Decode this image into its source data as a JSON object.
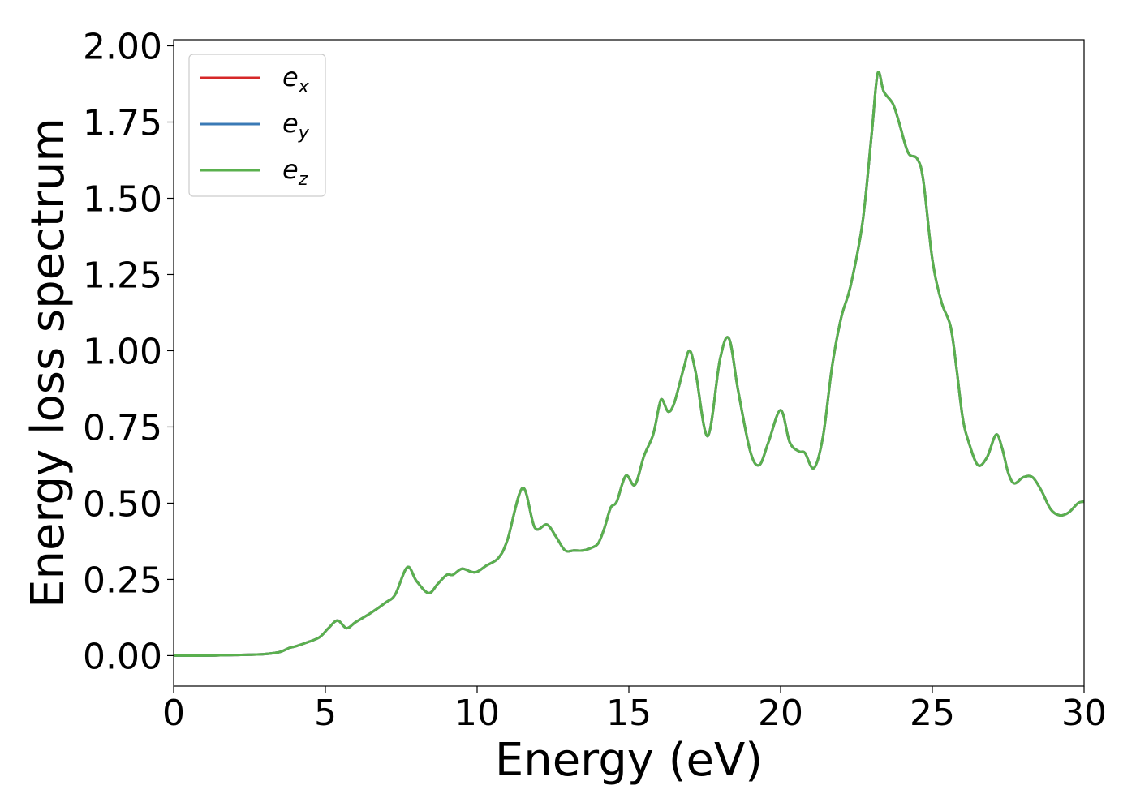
{
  "chart_data": {
    "type": "line",
    "xlabel": "Energy (eV)",
    "ylabel": "Energy loss spectrum",
    "xlim": [
      0,
      30
    ],
    "ylim": [
      -0.1,
      2.02
    ],
    "xticks": [
      0,
      5,
      10,
      15,
      20,
      25,
      30
    ],
    "xtick_labels": [
      "0",
      "5",
      "10",
      "15",
      "20",
      "25",
      "30"
    ],
    "yticks": [
      0,
      0.25,
      0.5,
      0.75,
      1.0,
      1.25,
      1.5,
      1.75,
      2.0
    ],
    "ytick_labels": [
      "0.00",
      "0.25",
      "0.50",
      "0.75",
      "1.00",
      "1.25",
      "1.50",
      "1.75",
      "2.00"
    ],
    "grid": false,
    "legend_position": "top-left",
    "x": [
      0,
      1,
      2,
      2.5,
      3,
      3.5,
      3.8,
      4,
      4.3,
      4.8,
      5.1,
      5.4,
      5.7,
      6.0,
      6.5,
      7.0,
      7.3,
      7.7,
      8.0,
      8.4,
      8.7,
      9.0,
      9.2,
      9.5,
      9.8,
      10.0,
      10.3,
      10.7,
      11.0,
      11.5,
      11.9,
      12.3,
      12.6,
      12.9,
      13.2,
      13.5,
      13.8,
      14.0,
      14.2,
      14.4,
      14.6,
      14.9,
      15.2,
      15.5,
      15.8,
      16.0,
      16.1,
      16.3,
      16.5,
      16.8,
      17.0,
      17.2,
      17.6,
      18.0,
      18.3,
      18.6,
      19.0,
      19.3,
      19.6,
      20.0,
      20.3,
      20.6,
      20.8,
      21.1,
      21.4,
      21.7,
      22.0,
      22.3,
      22.7,
      23.0,
      23.2,
      23.4,
      23.7,
      23.9,
      24.2,
      24.5,
      24.7,
      25.0,
      25.3,
      25.6,
      25.8,
      26.0,
      26.2,
      26.5,
      26.8,
      27.1,
      27.3,
      27.5,
      27.7,
      28.0,
      28.3,
      28.6,
      28.9,
      29.2,
      29.5,
      29.8,
      30.0
    ],
    "series": [
      {
        "name": "e_x",
        "label_base": "e",
        "label_sub": "x",
        "color": "#d62728",
        "values": [
          0.0,
          0.0,
          0.002,
          0.003,
          0.005,
          0.012,
          0.025,
          0.03,
          0.04,
          0.06,
          0.09,
          0.115,
          0.09,
          0.11,
          0.14,
          0.175,
          0.2,
          0.29,
          0.245,
          0.205,
          0.235,
          0.265,
          0.265,
          0.285,
          0.275,
          0.275,
          0.295,
          0.32,
          0.38,
          0.55,
          0.42,
          0.43,
          0.39,
          0.345,
          0.345,
          0.345,
          0.355,
          0.37,
          0.42,
          0.485,
          0.505,
          0.59,
          0.56,
          0.655,
          0.725,
          0.82,
          0.84,
          0.8,
          0.83,
          0.94,
          1.0,
          0.93,
          0.72,
          0.97,
          1.04,
          0.87,
          0.67,
          0.625,
          0.7,
          0.805,
          0.7,
          0.67,
          0.665,
          0.615,
          0.72,
          0.95,
          1.11,
          1.21,
          1.42,
          1.71,
          1.91,
          1.85,
          1.81,
          1.75,
          1.65,
          1.63,
          1.56,
          1.3,
          1.16,
          1.08,
          0.94,
          0.78,
          0.7,
          0.625,
          0.65,
          0.725,
          0.68,
          0.6,
          0.565,
          0.585,
          0.585,
          0.54,
          0.48,
          0.46,
          0.47,
          0.5,
          0.505
        ]
      },
      {
        "name": "e_y",
        "label_base": "e",
        "label_sub": "y",
        "color": "#3a7ab6",
        "values": [
          0.0,
          0.0,
          0.002,
          0.003,
          0.005,
          0.012,
          0.025,
          0.03,
          0.04,
          0.06,
          0.09,
          0.115,
          0.09,
          0.11,
          0.14,
          0.175,
          0.2,
          0.29,
          0.245,
          0.205,
          0.235,
          0.265,
          0.265,
          0.285,
          0.275,
          0.275,
          0.295,
          0.32,
          0.38,
          0.55,
          0.42,
          0.43,
          0.39,
          0.345,
          0.345,
          0.345,
          0.355,
          0.37,
          0.42,
          0.485,
          0.505,
          0.59,
          0.56,
          0.655,
          0.725,
          0.82,
          0.84,
          0.8,
          0.83,
          0.94,
          1.0,
          0.93,
          0.72,
          0.97,
          1.04,
          0.87,
          0.67,
          0.625,
          0.7,
          0.805,
          0.7,
          0.67,
          0.665,
          0.615,
          0.72,
          0.95,
          1.11,
          1.21,
          1.42,
          1.71,
          1.91,
          1.85,
          1.81,
          1.75,
          1.65,
          1.63,
          1.56,
          1.3,
          1.16,
          1.08,
          0.94,
          0.78,
          0.7,
          0.625,
          0.65,
          0.725,
          0.68,
          0.6,
          0.565,
          0.585,
          0.585,
          0.54,
          0.48,
          0.46,
          0.47,
          0.5,
          0.505
        ]
      },
      {
        "name": "e_z",
        "label_base": "e",
        "label_sub": "z",
        "color": "#5ab04e",
        "values": [
          0.0,
          0.0,
          0.002,
          0.003,
          0.005,
          0.012,
          0.025,
          0.03,
          0.04,
          0.06,
          0.09,
          0.115,
          0.09,
          0.11,
          0.14,
          0.175,
          0.2,
          0.29,
          0.245,
          0.205,
          0.235,
          0.265,
          0.265,
          0.285,
          0.275,
          0.275,
          0.295,
          0.32,
          0.38,
          0.55,
          0.42,
          0.43,
          0.39,
          0.345,
          0.345,
          0.345,
          0.355,
          0.37,
          0.42,
          0.485,
          0.505,
          0.59,
          0.56,
          0.655,
          0.725,
          0.82,
          0.84,
          0.8,
          0.83,
          0.94,
          1.0,
          0.93,
          0.72,
          0.97,
          1.04,
          0.87,
          0.67,
          0.625,
          0.7,
          0.805,
          0.7,
          0.67,
          0.665,
          0.615,
          0.72,
          0.95,
          1.11,
          1.21,
          1.42,
          1.71,
          1.91,
          1.85,
          1.81,
          1.75,
          1.65,
          1.63,
          1.56,
          1.3,
          1.16,
          1.08,
          0.94,
          0.78,
          0.7,
          0.625,
          0.65,
          0.725,
          0.68,
          0.6,
          0.565,
          0.585,
          0.585,
          0.54,
          0.48,
          0.46,
          0.47,
          0.5,
          0.505
        ]
      }
    ]
  }
}
